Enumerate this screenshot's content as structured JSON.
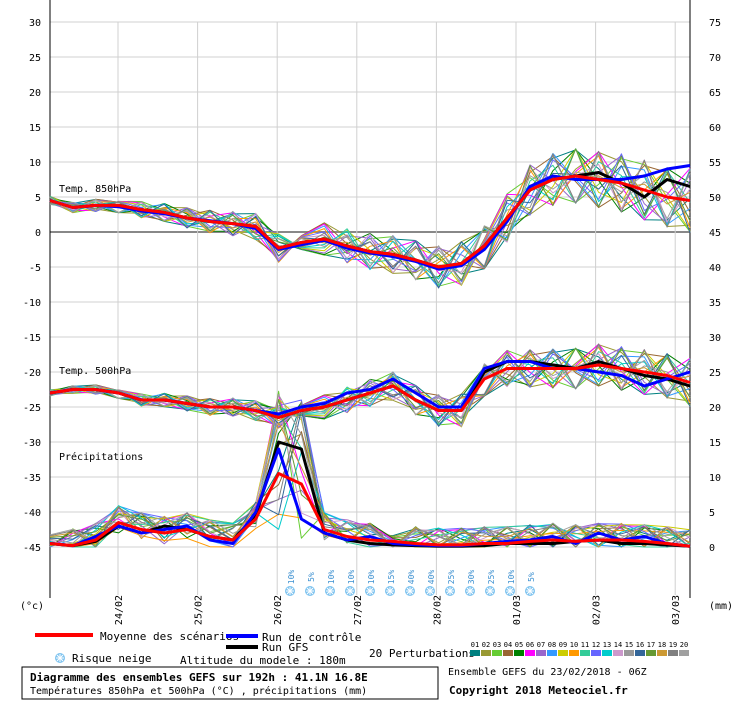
{
  "chart_data": {
    "type": "line",
    "title": "Diagramme des ensembles GEFS sur 192h : 41.1N 16.8E",
    "subtitle": "Températures 850hPa et 500hPa (°C) , précipitations (mm)",
    "left_axis": {
      "label": "(°c)",
      "min": -45,
      "max": 30,
      "ticks": [
        "30",
        "25",
        "20",
        "15",
        "10",
        "5",
        "0",
        "-5",
        "-10",
        "-15",
        "-20",
        "-25",
        "-30",
        "-35",
        "-40",
        "-45"
      ]
    },
    "right_axis": {
      "label": "(mm)",
      "min": 0,
      "max": 75,
      "ticks": [
        "75",
        "70",
        "65",
        "60",
        "55",
        "50",
        "45",
        "40",
        "35",
        "30",
        "25",
        "20",
        "15",
        "10",
        "5",
        "0"
      ]
    },
    "x_tick_labels": [
      "24/02",
      "25/02",
      "26/02",
      "27/02",
      "28/02",
      "01/03",
      "02/03",
      "03/03"
    ],
    "panel_labels": {
      "t850": "Temp. 850hPa",
      "t500": "Temp. 500hPa",
      "precip": "Précipitations"
    },
    "snow_risk": [
      "10%",
      "5%",
      "10%",
      "10%",
      "10%",
      "15%",
      "40%",
      "40%",
      "25%",
      "30%",
      "25%",
      "10%",
      "5%"
    ],
    "legend": {
      "mean": "Moyenne des scénarios",
      "control": "Run de contrôle",
      "gfs": "Run GFS",
      "snow": "Risque neige",
      "altitude": "Altitude du modele : 180m",
      "perturbations_label": "20 Perturbations",
      "perturbation_ids": [
        "01",
        "02",
        "03",
        "04",
        "05",
        "06",
        "07",
        "08",
        "09",
        "10",
        "11",
        "12",
        "13",
        "14",
        "15",
        "16",
        "17",
        "18",
        "19",
        "20"
      ]
    },
    "footer": {
      "ensemble": "Ensemble GEFS du 23/02/2018 - 06Z",
      "copyright": "Copyright 2018 Meteociel.fr"
    },
    "colors": {
      "mean": "#ff0000",
      "control": "#0000ff",
      "gfs": "#000000",
      "perturbations": [
        "#008080",
        "#999933",
        "#66cc33",
        "#996633",
        "#008000",
        "#ff00ff",
        "#9966cc",
        "#3399ff",
        "#cccc00",
        "#ff9900",
        "#33cc99",
        "#6666ff",
        "#00cccc",
        "#cc99cc",
        "#999999",
        "#336699",
        "#669933",
        "#cc9933",
        "#808080",
        "#a0a0a0"
      ]
    },
    "series_t850": {
      "mean": [
        4.5,
        3.5,
        3.8,
        3.8,
        3.2,
        2.8,
        2.0,
        1.5,
        1.2,
        0.8,
        -2.3,
        -1.5,
        -1.0,
        -2.0,
        -2.8,
        -3.2,
        -4.0,
        -5.0,
        -4.5,
        -2.0,
        2.0,
        6.0,
        7.5,
        8.0,
        7.5,
        7.0,
        6.0,
        5.0,
        4.5
      ],
      "control": [
        4.5,
        3.5,
        3.8,
        3.6,
        3.0,
        2.6,
        2.0,
        1.6,
        1.2,
        0.5,
        -2.5,
        -1.8,
        -1.2,
        -2.3,
        -3.0,
        -3.5,
        -4.2,
        -5.3,
        -4.8,
        -2.5,
        1.5,
        6.5,
        8.0,
        7.5,
        7.5,
        7.5,
        8.0,
        9.0,
        9.5
      ],
      "gfs": [
        4.5,
        3.5,
        3.8,
        3.8,
        3.2,
        2.8,
        2.0,
        1.5,
        1.2,
        0.8,
        -2.3,
        -1.5,
        -1.0,
        -2.0,
        -2.8,
        -3.2,
        -4.0,
        -5.0,
        -4.5,
        -2.0,
        2.0,
        6.0,
        7.5,
        8.0,
        8.5,
        7.0,
        5.0,
        7.5,
        6.5
      ]
    },
    "series_t500": {
      "mean": [
        -23,
        -22.5,
        -22.5,
        -23,
        -24,
        -24,
        -24.5,
        -25,
        -25,
        -25.5,
        -26.5,
        -25.5,
        -25,
        -24,
        -23,
        -22,
        -24,
        -25.5,
        -25.5,
        -21,
        -19.5,
        -19.5,
        -19.5,
        -19.5,
        -19,
        -19.5,
        -20,
        -20.5,
        -21.5
      ],
      "control": [
        -23,
        -22.5,
        -22.5,
        -23,
        -24,
        -24,
        -24.5,
        -25,
        -25,
        -25.5,
        -26,
        -25,
        -24.5,
        -23,
        -22.5,
        -21,
        -23,
        -25,
        -25,
        -19.5,
        -18.5,
        -18.5,
        -19.5,
        -19.5,
        -20,
        -20.5,
        -22,
        -21,
        -20
      ],
      "gfs": [
        -23,
        -22.5,
        -22.5,
        -23,
        -24,
        -24,
        -24.5,
        -25,
        -25,
        -25.5,
        -26.5,
        -25.5,
        -25,
        -24,
        -23,
        -22,
        -24,
        -25.5,
        -25.5,
        -20,
        -18.5,
        -18.5,
        -19,
        -19.5,
        -18.5,
        -19.5,
        -20.5,
        -21,
        -22
      ]
    },
    "series_precip_mm": {
      "mean": [
        0.5,
        0.2,
        1.0,
        3.5,
        2.5,
        2.0,
        2.5,
        1.5,
        1.0,
        4.0,
        10.5,
        9.0,
        2.5,
        1.5,
        1.0,
        0.8,
        0.5,
        0.3,
        0.3,
        0.5,
        0.5,
        0.8,
        1.0,
        0.8,
        1.0,
        1.0,
        0.8,
        0.5,
        0.1
      ],
      "control": [
        0.5,
        0.2,
        1.5,
        3.0,
        2.0,
        2.5,
        3.0,
        1.0,
        0.5,
        5.0,
        14.0,
        4.0,
        2.0,
        1.0,
        1.5,
        0.5,
        0.3,
        0.2,
        0.2,
        0.5,
        0.8,
        1.0,
        1.5,
        0.5,
        2.0,
        1.0,
        1.5,
        0.5,
        0.1
      ],
      "gfs": [
        0.5,
        0.2,
        0.8,
        3.0,
        2.0,
        3.0,
        2.5,
        1.5,
        1.0,
        4.5,
        15.0,
        14.0,
        2.0,
        1.0,
        0.5,
        0.3,
        0.2,
        0.1,
        0.1,
        0.2,
        0.5,
        0.5,
        0.5,
        0.8,
        1.0,
        0.5,
        0.5,
        0.3,
        0.1
      ]
    }
  }
}
